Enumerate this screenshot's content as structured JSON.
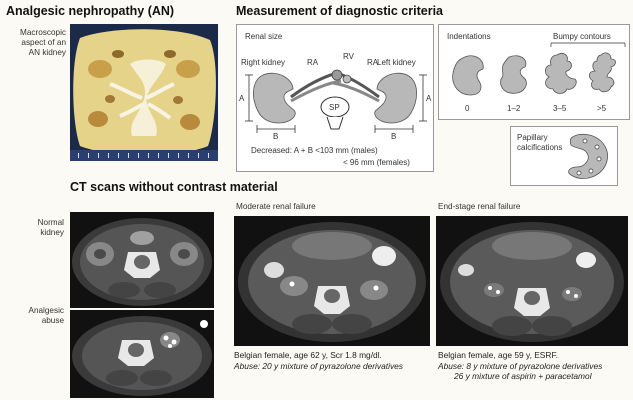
{
  "titles": {
    "main": "Analgesic nephropathy (AN)",
    "measurement": "Measurement of diagnostic criteria",
    "ct": "CT scans without contrast material"
  },
  "macroscopic": {
    "label_lines": [
      "Macroscopic",
      "aspect of an",
      "AN kidney"
    ]
  },
  "renal_size": {
    "title": "Renal size",
    "right_kidney": "Right kidney",
    "left_kidney": "Left kidney",
    "ra_left": "RA",
    "rv": "RV",
    "ra_right": "RA",
    "sp": "SP",
    "a_left": "A",
    "a_right": "A",
    "b_left": "B",
    "b_right": "B",
    "decreased_line1": "Decreased: A + B <103 mm (males)",
    "decreased_line2": "< 96 mm (females)"
  },
  "contours": {
    "indentations": "Indentations",
    "bumpy": "Bumpy contours",
    "counts": [
      "0",
      "1–2",
      "3–5",
      ">5"
    ]
  },
  "papillary": {
    "line1": "Papillary",
    "line2": "calcifications"
  },
  "ct_labels": {
    "normal": [
      "Normal",
      "kidney"
    ],
    "abuse": [
      "Analgesic",
      "abuse"
    ],
    "moderate": "Moderate renal failure",
    "endstage": "End-stage renal failure"
  },
  "captions": {
    "moderate_line1": "Belgian female, age 62 y, Scr 1.8 mg/dl.",
    "moderate_line2": "Abuse: 20 y mixture of pyrazolone derivatives",
    "endstage_line1": "Belgian female, age 59 y, ESRF.",
    "endstage_line2": "Abuse: 8 y mixture of pyrazolone derivatives",
    "endstage_line3": "26 y mixture of aspirin + paracetamol"
  },
  "colors": {
    "kidney_gray": "#b8b8b8",
    "specimen_yellow": "#e6d38a",
    "ct_bg": "#111111"
  }
}
